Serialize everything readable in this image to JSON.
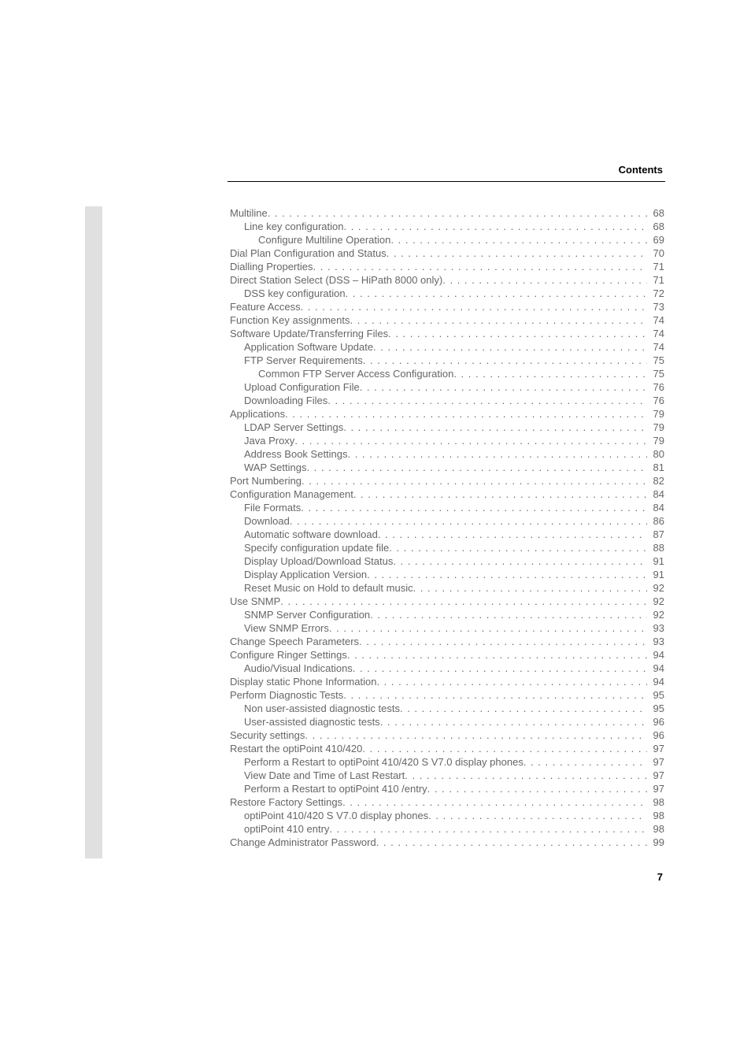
{
  "header": {
    "label": "Contents"
  },
  "footer": {
    "page_number": "7"
  },
  "toc": {
    "entries": [
      {
        "indent": 0,
        "label": "Multiline",
        "page": "68"
      },
      {
        "indent": 1,
        "label": "Line key configuration",
        "page": "68"
      },
      {
        "indent": 2,
        "label": "Configure Multiline Operation",
        "page": "69"
      },
      {
        "indent": 0,
        "label": "Dial Plan Configuration and Status",
        "page": "70"
      },
      {
        "indent": 0,
        "label": "Dialling Properties",
        "page": "71"
      },
      {
        "indent": 0,
        "label": "Direct Station Select (DSS – HiPath 8000 only)",
        "page": "71"
      },
      {
        "indent": 1,
        "label": "DSS key configuration",
        "page": "72"
      },
      {
        "indent": 0,
        "label": "Feature Access",
        "page": "73"
      },
      {
        "indent": 0,
        "label": "Function Key assignments",
        "page": "74"
      },
      {
        "indent": 0,
        "label": "Software Update/Transferring Files",
        "page": "74"
      },
      {
        "indent": 1,
        "label": "Application Software Update",
        "page": "74"
      },
      {
        "indent": 1,
        "label": "FTP Server Requirements",
        "page": "75"
      },
      {
        "indent": 2,
        "label": "Common FTP Server Access Configuration",
        "page": "75"
      },
      {
        "indent": 1,
        "label": "Upload Configuration File",
        "page": "76"
      },
      {
        "indent": 1,
        "label": "Downloading Files",
        "page": "76"
      },
      {
        "indent": 0,
        "label": "Applications",
        "page": "79"
      },
      {
        "indent": 1,
        "label": "LDAP Server Settings",
        "page": "79"
      },
      {
        "indent": 1,
        "label": "Java Proxy",
        "page": "79"
      },
      {
        "indent": 1,
        "label": "Address Book Settings",
        "page": "80"
      },
      {
        "indent": 1,
        "label": "WAP Settings",
        "page": "81"
      },
      {
        "indent": 0,
        "label": "Port Numbering",
        "page": "82"
      },
      {
        "indent": 0,
        "label": "Configuration Management",
        "page": "84"
      },
      {
        "indent": 1,
        "label": "File Formats",
        "page": "84"
      },
      {
        "indent": 1,
        "label": "Download",
        "page": "86"
      },
      {
        "indent": 1,
        "label": "Automatic software download",
        "page": "87"
      },
      {
        "indent": 1,
        "label": "Specify configuration update file",
        "page": "88"
      },
      {
        "indent": 1,
        "label": "Display Upload/Download Status",
        "page": "91"
      },
      {
        "indent": 1,
        "label": "Display Application Version",
        "page": "91"
      },
      {
        "indent": 1,
        "label": "Reset Music on Hold to default music",
        "page": "92"
      },
      {
        "indent": 0,
        "label": "Use SNMP",
        "page": "92"
      },
      {
        "indent": 1,
        "label": "SNMP Server Configuration",
        "page": "92"
      },
      {
        "indent": 1,
        "label": "View SNMP Errors",
        "page": "93"
      },
      {
        "indent": 0,
        "label": "Change Speech Parameters",
        "page": "93"
      },
      {
        "indent": 0,
        "label": "Configure Ringer Settings",
        "page": "94"
      },
      {
        "indent": 1,
        "label": "Audio/Visual Indications",
        "page": "94"
      },
      {
        "indent": 0,
        "label": "Display static Phone Information",
        "page": "94"
      },
      {
        "indent": 0,
        "label": "Perform Diagnostic Tests",
        "page": "95"
      },
      {
        "indent": 1,
        "label": "Non user-assisted diagnostic tests",
        "page": "95"
      },
      {
        "indent": 1,
        "label": "User-assisted diagnostic tests",
        "page": "96"
      },
      {
        "indent": 0,
        "label": "Security settings",
        "page": "96"
      },
      {
        "indent": 0,
        "label": "Restart the optiPoint 410/420",
        "page": "97"
      },
      {
        "indent": 1,
        "label": "Perform a Restart to optiPoint 410/420 S V7.0 display phones",
        "page": "97"
      },
      {
        "indent": 1,
        "label": "View Date and Time of Last Restart",
        "page": "97"
      },
      {
        "indent": 1,
        "label": "Perform a Restart to optiPoint 410 /entry",
        "page": "97"
      },
      {
        "indent": 0,
        "label": "Restore Factory Settings",
        "page": "98"
      },
      {
        "indent": 1,
        "label": "optiPoint 410/420 S V7.0 display phones",
        "page": "98"
      },
      {
        "indent": 1,
        "label": "optiPoint 410 entry",
        "page": "98"
      },
      {
        "indent": 0,
        "label": "Change Administrator Password",
        "page": "99"
      }
    ]
  }
}
